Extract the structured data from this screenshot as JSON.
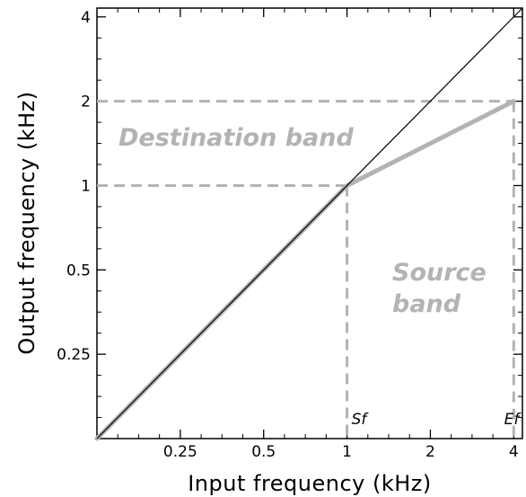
{
  "chart_data": {
    "type": "line",
    "scale": "log2",
    "xlabel": "Input frequency (kHz)",
    "ylabel": "Output frequency (kHz)",
    "xlim": [
      0.125,
      4.3
    ],
    "ylim": [
      0.125,
      4.3
    ],
    "x_ticks": [
      {
        "value": 0.25,
        "label": "0.25"
      },
      {
        "value": 0.5,
        "label": "0.5"
      },
      {
        "value": 1,
        "label": "1"
      },
      {
        "value": 2,
        "label": "2"
      },
      {
        "value": 4,
        "label": "4"
      }
    ],
    "y_ticks": [
      {
        "value": 0.25,
        "label": "0.25"
      },
      {
        "value": 0.5,
        "label": "0.5"
      },
      {
        "value": 1,
        "label": "1"
      },
      {
        "value": 2,
        "label": "2"
      },
      {
        "value": 4,
        "label": "4"
      }
    ],
    "series": [
      {
        "x": [
          0.125,
          4.3
        ],
        "y": [
          0.125,
          4.3
        ],
        "color": "#000000"
      },
      {
        "x": [
          0.125,
          1,
          4
        ],
        "y": [
          0.125,
          1,
          2
        ],
        "color": "#b3b3b3"
      }
    ],
    "guides": {
      "sf": {
        "value": 1,
        "label": "Sf"
      },
      "ef": {
        "value": 4,
        "label": "Ef"
      },
      "dest_low": 1,
      "dest_high": 2,
      "color": "#b3b3b3"
    },
    "annotations": {
      "destination": "Destination band",
      "source_line1": "Source",
      "source_line2": "band",
      "color": "#b3b3b3"
    }
  }
}
